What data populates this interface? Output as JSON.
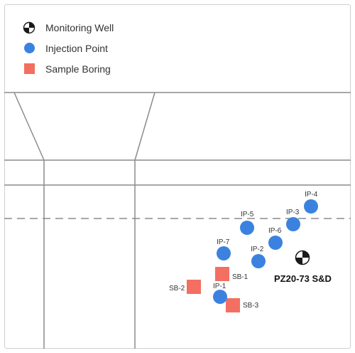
{
  "legend": {
    "monitoring_well": {
      "label": "Monitoring Well",
      "icon": "monitoring-well-icon"
    },
    "injection_point": {
      "label": "Injection Point",
      "icon": "injection-point-icon",
      "color": "#3b82e0"
    },
    "sample_boring": {
      "label": "Sample Boring",
      "icon": "sample-boring-icon",
      "color": "#f36f61"
    }
  },
  "injection_points": [
    {
      "label": "IP-4"
    },
    {
      "label": "IP-5"
    },
    {
      "label": "IP-3"
    },
    {
      "label": "IP-6"
    },
    {
      "label": "IP-7"
    },
    {
      "label": "IP-2"
    },
    {
      "label": "IP-1"
    }
  ],
  "sample_borings": [
    {
      "label": "SB-1"
    },
    {
      "label": "SB-2"
    },
    {
      "label": "SB-3"
    }
  ],
  "monitoring_wells": [
    {
      "label": "PZ20-73 S&D"
    }
  ]
}
